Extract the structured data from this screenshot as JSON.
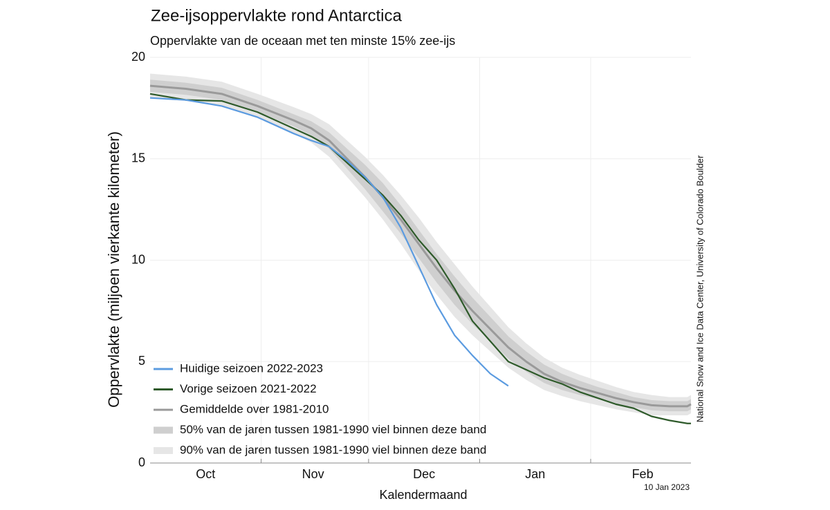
{
  "chart_data": {
    "type": "line",
    "title": "Zee-ijsoppervlakte rond Antarctica",
    "subtitle": "Oppervlakte van de oceaan met ten minste 15% zee-ijs",
    "y_label": "Oppervlakte (miljoen vierkante kilometer)",
    "x_label": "Kalendermaand",
    "source": "National Snow and Ice Data Center, University of Colorado Boulder",
    "date_note": "10 Jan 2023",
    "x": [
      0,
      10,
      20,
      30,
      40,
      45,
      50,
      55,
      60,
      65,
      70,
      75,
      80,
      85,
      90,
      95,
      100,
      105,
      110,
      115,
      120,
      125,
      130,
      135,
      140,
      145,
      150,
      151
    ],
    "xlim": [
      0,
      151
    ],
    "xticks": [
      {
        "value": 15.5,
        "label": "Oct"
      },
      {
        "value": 45.5,
        "label": "Nov"
      },
      {
        "value": 76.5,
        "label": "Dec"
      },
      {
        "value": 107.5,
        "label": "Jan"
      },
      {
        "value": 137.5,
        "label": "Feb"
      }
    ],
    "xgrid": [
      31,
      61,
      92,
      123
    ],
    "ylim": [
      0,
      20
    ],
    "yticks": [
      0,
      5,
      10,
      15,
      20
    ],
    "grid": true,
    "series": [
      {
        "name": "90% van de jaren tussen 1981-1990 viel binnen deze band",
        "kind": "band",
        "color": "#e6e6e6",
        "low": [
          18.0,
          17.85,
          17.6,
          17.0,
          16.25,
          15.8,
          15.1,
          14.1,
          13.1,
          12.0,
          10.8,
          9.5,
          8.3,
          7.2,
          6.3,
          5.5,
          4.7,
          4.1,
          3.6,
          3.3,
          3.05,
          2.85,
          2.65,
          2.5,
          2.35,
          2.35,
          2.35,
          2.45
        ],
        "high": [
          19.2,
          19.05,
          18.8,
          18.2,
          17.55,
          17.2,
          16.7,
          15.9,
          15.1,
          14.2,
          13.2,
          12.1,
          10.9,
          9.8,
          8.7,
          7.7,
          6.7,
          5.9,
          5.2,
          4.7,
          4.35,
          4.05,
          3.75,
          3.5,
          3.35,
          3.25,
          3.25,
          3.35
        ]
      },
      {
        "name": "50% van de jaren tussen 1981-1990 viel binnen deze band",
        "kind": "band",
        "color": "#cfcfcf",
        "low": [
          18.3,
          18.15,
          17.9,
          17.3,
          16.6,
          16.15,
          15.5,
          14.5,
          13.5,
          12.4,
          11.3,
          10.1,
          8.9,
          7.8,
          6.85,
          6.0,
          5.15,
          4.5,
          3.95,
          3.6,
          3.35,
          3.15,
          2.9,
          2.75,
          2.6,
          2.55,
          2.55,
          2.65
        ],
        "high": [
          18.9,
          18.75,
          18.5,
          17.9,
          17.2,
          16.85,
          16.3,
          15.5,
          14.7,
          13.8,
          12.7,
          11.5,
          10.3,
          9.2,
          8.15,
          7.2,
          6.25,
          5.5,
          4.85,
          4.4,
          4.05,
          3.75,
          3.5,
          3.25,
          3.1,
          3.05,
          3.05,
          3.15
        ]
      },
      {
        "name": "Gemiddelde over 1981-2010",
        "kind": "line",
        "color": "#9a9a9a",
        "width": 3,
        "values": [
          18.6,
          18.45,
          18.2,
          17.6,
          16.9,
          16.5,
          15.9,
          15.0,
          14.1,
          13.1,
          12.0,
          10.8,
          9.6,
          8.5,
          7.5,
          6.6,
          5.7,
          5.0,
          4.4,
          4.0,
          3.7,
          3.45,
          3.2,
          3.0,
          2.85,
          2.8,
          2.8,
          2.9
        ]
      },
      {
        "name": "Vorige seizoen 2021-2022",
        "kind": "line",
        "color": "#2e5a2a",
        "width": 2.2,
        "values": [
          18.2,
          17.9,
          17.85,
          17.3,
          16.5,
          16.1,
          15.6,
          14.8,
          14.0,
          13.2,
          12.2,
          11.0,
          10.0,
          8.6,
          7.0,
          6.0,
          5.0,
          4.6,
          4.2,
          3.9,
          3.5,
          3.2,
          2.9,
          2.7,
          2.3,
          2.1,
          1.95,
          1.95
        ]
      },
      {
        "name": "Huidige seizoen 2022-2023",
        "kind": "line",
        "color": "#5b9be0",
        "width": 2.2,
        "values": [
          18.0,
          17.9,
          17.6,
          17.05,
          16.25,
          15.9,
          15.6,
          14.9,
          14.1,
          13.1,
          11.6,
          9.7,
          7.8,
          6.3,
          5.3,
          4.4,
          3.8,
          null,
          null,
          null,
          null,
          null,
          null,
          null,
          null,
          null,
          null,
          null
        ]
      }
    ],
    "legend_order": [
      4,
      3,
      2,
      1,
      0
    ]
  }
}
